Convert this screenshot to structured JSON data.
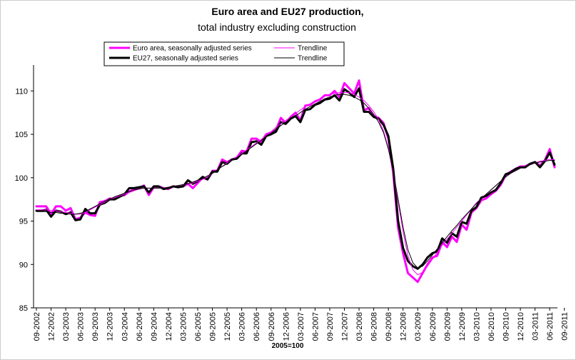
{
  "chart_data": {
    "type": "line",
    "title": "Euro area and EU27 production,",
    "subtitle": "total industry excluding construction",
    "xlabel": "2005=100",
    "ylabel": "",
    "ylim": [
      85,
      112
    ],
    "yticks": [
      85,
      90,
      95,
      100,
      105,
      110
    ],
    "x_tick_labels": [
      "09-2002",
      "12-2002",
      "03-2003",
      "06-2003",
      "09-2003",
      "12-2003",
      "03-2004",
      "06-2004",
      "09-2004",
      "12-2004",
      "03-2005",
      "06-2005",
      "09-2005",
      "12-2005",
      "03-2006",
      "06-2006",
      "09-2006",
      "12-2006",
      "03-2007",
      "06-2007",
      "09-2007",
      "12-2007",
      "03-2008",
      "06-2008",
      "09-2008",
      "12-2008",
      "03-2009",
      "06-2009",
      "09-2009",
      "12-2009",
      "03-2010",
      "06-2010",
      "09-2010",
      "12-2010",
      "03-2011",
      "06-2011",
      "09-2011"
    ],
    "legend": {
      "items": [
        {
          "label": "Euro area, seasonally adjusted series",
          "color": "#ff00ff",
          "width": 3
        },
        {
          "label": "Trendline",
          "color": "#ff00ff",
          "width": 1
        },
        {
          "label": "EU27, seasonally adjusted series",
          "color": "#000000",
          "width": 3
        },
        {
          "label": "Trendline",
          "color": "#000000",
          "width": 1
        }
      ]
    },
    "series": [
      {
        "name": "Euro area, seasonally adjusted series",
        "color": "#ff00ff",
        "width": 3,
        "values": [
          96.7,
          96.7,
          96.7,
          95.8,
          96.7,
          96.7,
          96.2,
          96.5,
          95.2,
          95.4,
          96.0,
          95.7,
          95.6,
          97.2,
          97.3,
          97.6,
          97.5,
          97.9,
          98.0,
          98.4,
          98.7,
          98.8,
          99.1,
          98.0,
          98.9,
          99.0,
          98.8,
          98.7,
          99.0,
          98.9,
          99.0,
          99.3,
          98.8,
          99.4,
          100.0,
          99.8,
          100.8,
          100.8,
          102.1,
          101.8,
          102.1,
          102.3,
          103.1,
          103.0,
          104.5,
          104.5,
          104.1,
          105.0,
          105.2,
          105.5,
          106.9,
          106.3,
          107.0,
          107.5,
          106.6,
          108.3,
          108.4,
          108.8,
          109.0,
          109.5,
          109.5,
          110.0,
          109.3,
          110.9,
          110.3,
          109.7,
          111.2,
          107.8,
          108.0,
          107.1,
          106.9,
          106.3,
          104.5,
          100.5,
          94.2,
          91.3,
          89.0,
          88.5,
          88.0,
          89.0,
          90.0,
          90.8,
          91.0,
          92.6,
          92.0,
          93.2,
          92.6,
          94.6,
          94.0,
          96.0,
          96.5,
          97.4,
          97.6,
          98.1,
          98.5,
          99.2,
          100.3,
          100.7,
          101.0,
          101.3,
          101.3,
          101.6,
          101.8,
          101.4,
          102.0,
          103.3,
          101.2
        ]
      },
      {
        "name": "Trendline",
        "color": "#ff00ff",
        "width": 1,
        "values": [
          96.3,
          96.3,
          96.3,
          96.2,
          96.2,
          96.1,
          96.0,
          95.9,
          95.8,
          95.8,
          96.0,
          96.3,
          96.6,
          96.9,
          97.2,
          97.5,
          97.7,
          97.9,
          98.1,
          98.3,
          98.5,
          98.7,
          98.8,
          98.8,
          98.8,
          98.8,
          98.8,
          98.9,
          99.0,
          99.1,
          99.2,
          99.3,
          99.4,
          99.6,
          99.8,
          100.1,
          100.5,
          100.9,
          101.3,
          101.7,
          102.0,
          102.4,
          102.8,
          103.2,
          103.6,
          104.0,
          104.4,
          104.9,
          105.3,
          105.8,
          106.2,
          106.6,
          107.0,
          107.4,
          107.8,
          108.2,
          108.5,
          108.8,
          109.1,
          109.4,
          109.6,
          109.7,
          109.8,
          109.8,
          109.8,
          109.6,
          109.3,
          108.9,
          108.3,
          107.6,
          106.7,
          105.4,
          103.4,
          100.6,
          97.2,
          93.8,
          91.0,
          89.4,
          88.8,
          89.1,
          89.8,
          90.6,
          91.4,
          92.2,
          92.9,
          93.6,
          94.3,
          95.0,
          95.7,
          96.4,
          97.1,
          97.6,
          98.1,
          98.6,
          99.1,
          99.6,
          100.1,
          100.5,
          100.8,
          101.1,
          101.3,
          101.5,
          101.7,
          101.9,
          102.0,
          102.1,
          102.1
        ]
      },
      {
        "name": "EU27, seasonally adjusted series",
        "color": "#000000",
        "width": 3,
        "values": [
          96.2,
          96.2,
          96.3,
          95.5,
          96.2,
          96.1,
          95.8,
          96.0,
          95.1,
          95.2,
          96.4,
          95.9,
          95.9,
          96.9,
          97.1,
          97.5,
          97.5,
          97.8,
          98.1,
          98.8,
          98.8,
          98.9,
          99.0,
          98.3,
          99.0,
          99.0,
          98.7,
          98.8,
          99.0,
          98.9,
          99.0,
          99.7,
          99.3,
          99.6,
          100.1,
          99.8,
          100.7,
          100.7,
          101.8,
          101.6,
          102.1,
          102.2,
          102.8,
          102.8,
          104.1,
          104.2,
          103.8,
          104.8,
          105.0,
          105.3,
          106.4,
          106.2,
          106.8,
          107.1,
          106.4,
          107.8,
          107.9,
          108.4,
          108.6,
          109.0,
          109.1,
          109.5,
          108.9,
          110.2,
          109.8,
          109.3,
          110.3,
          107.6,
          107.6,
          107.0,
          106.8,
          106.1,
          104.8,
          101.0,
          95.0,
          91.9,
          90.4,
          89.8,
          89.5,
          90.0,
          90.8,
          91.3,
          91.5,
          93.0,
          92.5,
          93.6,
          93.2,
          94.9,
          94.7,
          96.2,
          96.6,
          97.7,
          97.9,
          98.3,
          98.6,
          99.4,
          100.4,
          100.6,
          101.0,
          101.2,
          101.2,
          101.6,
          101.8,
          101.2,
          101.9,
          102.9,
          101.5
        ]
      },
      {
        "name": "Trendline",
        "color": "#000000",
        "width": 1,
        "values": [
          96.1,
          96.1,
          96.1,
          96.0,
          96.0,
          95.9,
          95.9,
          95.8,
          95.8,
          95.9,
          96.1,
          96.4,
          96.7,
          97.0,
          97.3,
          97.5,
          97.8,
          98.0,
          98.2,
          98.4,
          98.6,
          98.7,
          98.8,
          98.8,
          98.8,
          98.8,
          98.8,
          98.9,
          99.0,
          99.1,
          99.2,
          99.3,
          99.5,
          99.7,
          99.9,
          100.2,
          100.5,
          100.9,
          101.3,
          101.6,
          102.0,
          102.3,
          102.7,
          103.1,
          103.5,
          103.9,
          104.3,
          104.7,
          105.1,
          105.6,
          106.0,
          106.4,
          106.8,
          107.1,
          107.5,
          107.9,
          108.2,
          108.5,
          108.8,
          109.1,
          109.3,
          109.5,
          109.6,
          109.6,
          109.5,
          109.3,
          109.0,
          108.6,
          108.0,
          107.3,
          106.4,
          105.2,
          103.3,
          100.7,
          97.5,
          94.3,
          91.7,
          90.2,
          89.6,
          89.8,
          90.4,
          91.1,
          91.8,
          92.5,
          93.2,
          93.9,
          94.5,
          95.2,
          95.8,
          96.4,
          97.0,
          97.6,
          98.1,
          98.6,
          99.1,
          99.6,
          100.1,
          100.5,
          100.8,
          101.1,
          101.3,
          101.5,
          101.7,
          101.8,
          101.9,
          102.0,
          102.0
        ]
      }
    ]
  }
}
